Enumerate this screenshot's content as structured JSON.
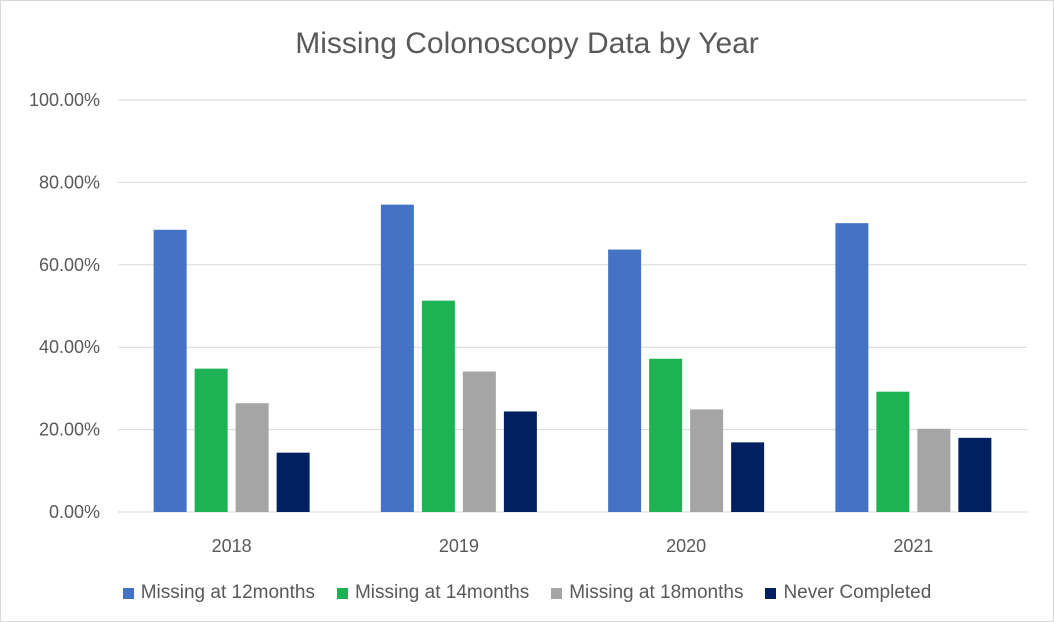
{
  "chart_data": {
    "type": "bar",
    "title": "Missing Colonoscopy Data by Year",
    "xlabel": "",
    "ylabel": "",
    "categories": [
      "2018",
      "2019",
      "2020",
      "2021"
    ],
    "series": [
      {
        "name": "Missing at 12months",
        "values": [
          68.5,
          74.6,
          63.7,
          70.1
        ],
        "color": "#4472c4"
      },
      {
        "name": "Missing at 14months",
        "values": [
          34.8,
          51.3,
          37.2,
          29.2
        ],
        "color": "#1db254"
      },
      {
        "name": "Missing at 18months",
        "values": [
          26.4,
          34.1,
          24.9,
          20.2
        ],
        "color": "#a5a5a5"
      },
      {
        "name": "Never Completed",
        "values": [
          14.4,
          24.4,
          16.9,
          18.0
        ],
        "color": "#002060"
      }
    ],
    "ylim": [
      0,
      100
    ],
    "yticks": [
      0,
      20,
      40,
      60,
      80,
      100
    ],
    "ytick_labels": [
      "0.00%",
      "20.00%",
      "40.00%",
      "60.00%",
      "80.00%",
      "100.00%"
    ],
    "grid": true,
    "gridline_color": "#d9d9d9",
    "legend_position": "bottom"
  }
}
